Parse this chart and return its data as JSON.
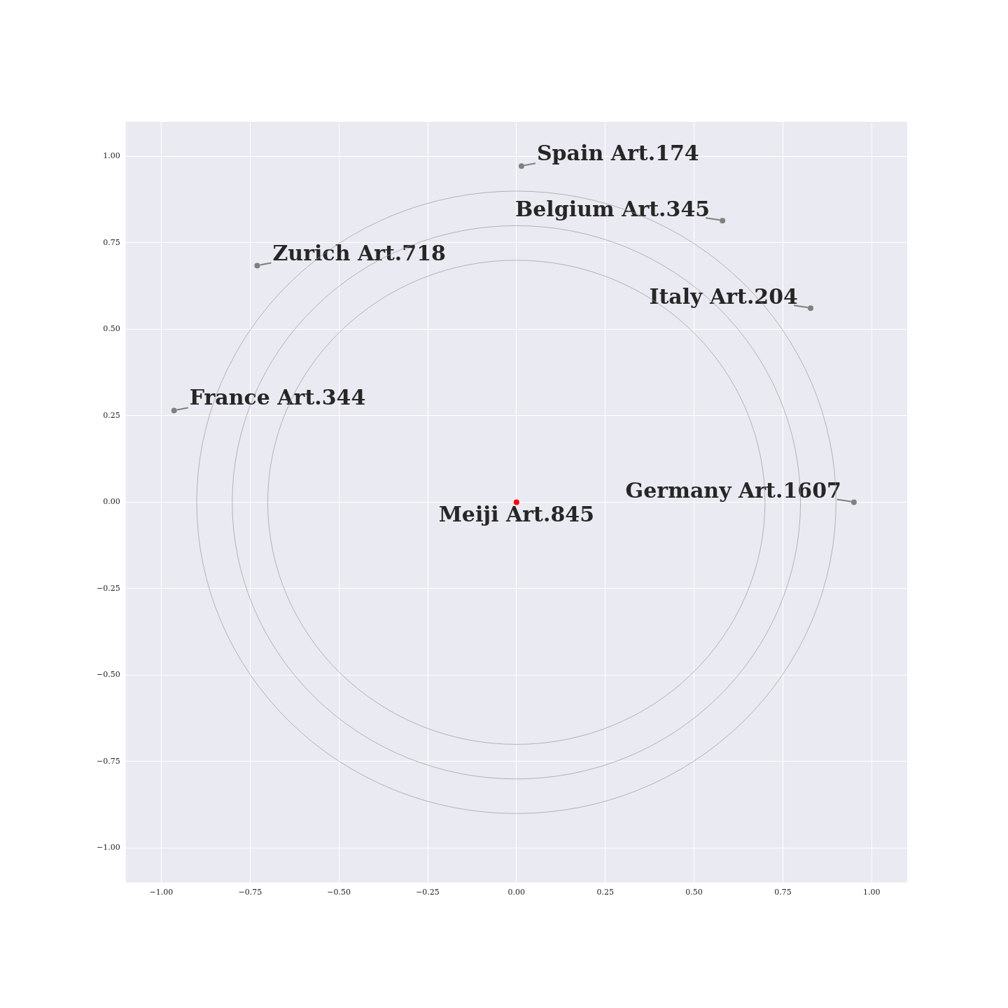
{
  "chart_data": {
    "type": "scatter",
    "xlim": [
      -1.1,
      1.1
    ],
    "ylim": [
      -1.1,
      1.1
    ],
    "xticks": [
      {
        "value": -1,
        "label": "−1.00"
      },
      {
        "value": -0.75,
        "label": "−0.75"
      },
      {
        "value": -0.5,
        "label": "−0.50"
      },
      {
        "value": -0.25,
        "label": "−0.25"
      },
      {
        "value": 0,
        "label": "0.00"
      },
      {
        "value": 0.25,
        "label": "0.25"
      },
      {
        "value": 0.5,
        "label": "0.50"
      },
      {
        "value": 0.75,
        "label": "0.75"
      },
      {
        "value": 1,
        "label": "1.00"
      }
    ],
    "yticks": [
      {
        "value": -1,
        "label": "−1.00"
      },
      {
        "value": -0.75,
        "label": "−0.75"
      },
      {
        "value": -0.5,
        "label": "−0.50"
      },
      {
        "value": -0.25,
        "label": "−0.25"
      },
      {
        "value": 0,
        "label": "0.00"
      },
      {
        "value": 0.25,
        "label": "0.25"
      },
      {
        "value": 0.5,
        "label": "0.50"
      },
      {
        "value": 0.75,
        "label": "0.75"
      },
      {
        "value": 1,
        "label": "1.00"
      }
    ],
    "grid": true,
    "legend": false,
    "series": [
      {
        "type": "scatter",
        "x": [
          0.014,
          0.58,
          -0.73,
          0.828,
          -0.964,
          0.95,
          0
        ],
        "values": [
          0.972,
          0.814,
          0.684,
          0.561,
          0.265,
          0,
          0
        ],
        "colors": [
          "#808080",
          "#808080",
          "#808080",
          "#808080",
          "#808080",
          "#808080",
          "#ff0000"
        ],
        "marker": "circle"
      }
    ],
    "annotations": [
      {
        "text": "Spain Art.174",
        "x": 0.014,
        "y": 0.972
      },
      {
        "text": "Belgium Art.345",
        "x": 0.58,
        "y": 0.814
      },
      {
        "text": "Zurich Art.718",
        "x": -0.73,
        "y": 0.684
      },
      {
        "text": "Italy Art.204",
        "x": 0.828,
        "y": 0.561
      },
      {
        "text": "France Art.344",
        "x": -0.964,
        "y": 0.265
      },
      {
        "text": "Germany Art.1607",
        "x": 0.95,
        "y": 0
      },
      {
        "text": "Meiji Art.845",
        "x": 0,
        "y": 0
      }
    ]
  }
}
